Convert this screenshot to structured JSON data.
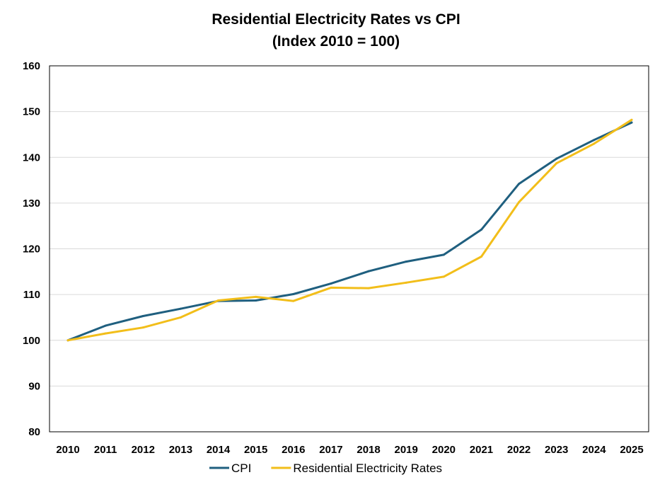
{
  "chart_data": {
    "type": "line",
    "title": "Residential Electricity Rates vs CPI",
    "subtitle": "(Index 2010 = 100)",
    "xlabel": "",
    "ylabel": "",
    "categories": [
      "2010",
      "2011",
      "2012",
      "2013",
      "2014",
      "2015",
      "2016",
      "2017",
      "2018",
      "2019",
      "2020",
      "2021",
      "2022",
      "2023",
      "2024",
      "2025"
    ],
    "ylim": [
      80,
      160
    ],
    "yticks": [
      80,
      90,
      100,
      110,
      120,
      130,
      140,
      150,
      160
    ],
    "grid": true,
    "legend_position": "bottom",
    "series": [
      {
        "name": "CPI",
        "color": "#1f5f7f",
        "values": [
          100,
          103.2,
          105.3,
          106.9,
          108.6,
          108.7,
          110.1,
          112.4,
          115.1,
          117.2,
          118.7,
          124.2,
          134.2,
          139.7,
          143.8,
          147.6
        ]
      },
      {
        "name": "Residential Electricity Rates",
        "color": "#f2be1a",
        "values": [
          100,
          101.5,
          102.8,
          105.0,
          108.7,
          109.5,
          108.6,
          111.5,
          111.4,
          112.6,
          113.9,
          118.3,
          130.2,
          138.7,
          143.0,
          148.2
        ]
      }
    ]
  }
}
